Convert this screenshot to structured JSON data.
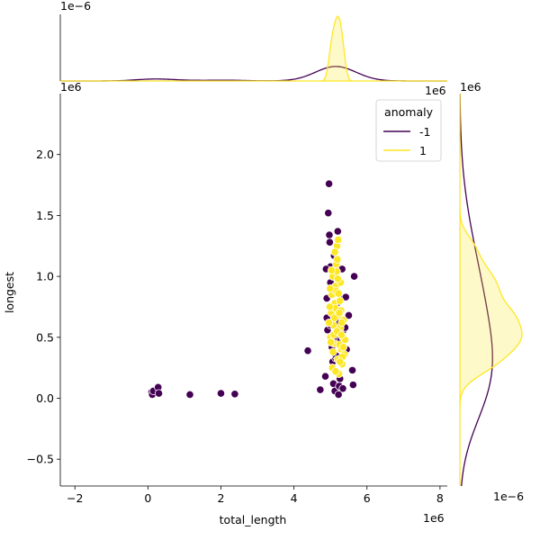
{
  "chart_data": {
    "type": "scatter",
    "title": "",
    "xlabel": "total_length",
    "ylabel": "longest",
    "x_offset_label": "1e6",
    "y_offset_label": "1e6",
    "xlim": [
      -2.4,
      8.2
    ],
    "ylim": [
      -0.72,
      2.5
    ],
    "x_ticks": [
      -2,
      0,
      2,
      4,
      6,
      8
    ],
    "y_ticks": [
      -0.5,
      0.0,
      0.5,
      1.0,
      1.5,
      2.0
    ],
    "x_tick_labels": [
      "−2",
      "0",
      "2",
      "4",
      "6",
      "8"
    ],
    "y_tick_labels": [
      "−0.5",
      "0.0",
      "0.5",
      "1.0",
      "1.5",
      "2.0"
    ],
    "grid": false,
    "legend": {
      "title": "anomaly",
      "placement": "top-right",
      "entries": [
        {
          "label": "-1",
          "color": "#440154"
        },
        {
          "label": "1",
          "color": "#fde725"
        }
      ]
    },
    "marginals": {
      "top_offset_label": "1e−6",
      "top_axis_right_label": "1e6",
      "right_offset_label": "1e−6",
      "right_axis_top_label": "1e6"
    },
    "series": [
      {
        "name": "-1",
        "color": "#440154",
        "points": [
          [
            0.1,
            0.05
          ],
          [
            0.12,
            0.03
          ],
          [
            0.15,
            0.06
          ],
          [
            0.28,
            0.09
          ],
          [
            0.3,
            0.04
          ],
          [
            1.15,
            0.03
          ],
          [
            2.0,
            0.04
          ],
          [
            2.38,
            0.035
          ],
          [
            4.38,
            0.39
          ],
          [
            4.72,
            0.07
          ],
          [
            4.86,
            0.18
          ],
          [
            4.9,
            0.66
          ],
          [
            4.92,
            0.56
          ],
          [
            4.94,
            1.52
          ],
          [
            4.96,
            1.76
          ],
          [
            4.97,
            1.34
          ],
          [
            4.98,
            1.28
          ],
          [
            5.0,
            0.95
          ],
          [
            5.0,
            1.08
          ],
          [
            5.0,
            0.6
          ],
          [
            5.02,
            0.9
          ],
          [
            5.04,
            0.42
          ],
          [
            5.06,
            0.3
          ],
          [
            5.08,
            0.12
          ],
          [
            5.1,
            1.17
          ],
          [
            5.12,
            0.06
          ],
          [
            5.14,
            0.33
          ],
          [
            5.16,
            0.5
          ],
          [
            5.18,
            0.78
          ],
          [
            5.2,
            1.37
          ],
          [
            5.22,
            0.03
          ],
          [
            5.24,
            0.1
          ],
          [
            5.26,
            0.16
          ],
          [
            5.28,
            0.48
          ],
          [
            5.3,
            0.82
          ],
          [
            5.32,
            1.06
          ],
          [
            5.34,
            0.08
          ],
          [
            5.36,
            0.56
          ],
          [
            5.4,
            0.58
          ],
          [
            5.42,
            0.83
          ],
          [
            5.44,
            0.4
          ],
          [
            5.5,
            0.68
          ],
          [
            5.6,
            0.23
          ],
          [
            5.62,
            0.11
          ],
          [
            5.65,
            1.0
          ],
          [
            4.88,
            1.06
          ],
          [
            4.9,
            0.82
          ],
          [
            5.15,
            0.35
          ],
          [
            5.25,
            0.62
          ]
        ]
      },
      {
        "name": "1",
        "color": "#fde725",
        "points": [
          [
            5.0,
            0.5
          ],
          [
            5.02,
            0.7
          ],
          [
            5.04,
            0.85
          ],
          [
            5.06,
            1.0
          ],
          [
            5.08,
            0.6
          ],
          [
            5.1,
            0.45
          ],
          [
            5.12,
            0.78
          ],
          [
            5.14,
            0.92
          ],
          [
            5.16,
            1.1
          ],
          [
            5.18,
            1.25
          ],
          [
            5.2,
            0.32
          ],
          [
            5.22,
            0.55
          ],
          [
            5.24,
            0.68
          ],
          [
            5.26,
            0.8
          ],
          [
            5.28,
            0.95
          ],
          [
            5.3,
            0.4
          ],
          [
            5.32,
            0.28
          ],
          [
            5.34,
            0.5
          ],
          [
            5.36,
            0.64
          ],
          [
            5.38,
            0.36
          ],
          [
            5.4,
            0.48
          ],
          [
            5.05,
            0.25
          ],
          [
            5.07,
            0.38
          ],
          [
            5.09,
            0.52
          ],
          [
            5.11,
            0.66
          ],
          [
            5.13,
            0.74
          ],
          [
            5.15,
            0.88
          ],
          [
            5.17,
            1.04
          ],
          [
            5.19,
            1.14
          ],
          [
            5.21,
            1.3
          ],
          [
            5.23,
            0.2
          ],
          [
            5.25,
            0.44
          ],
          [
            5.27,
            0.58
          ],
          [
            5.29,
            0.72
          ],
          [
            5.31,
            0.62
          ],
          [
            5.33,
            0.34
          ],
          [
            5.35,
            0.42
          ],
          [
            4.98,
            0.75
          ],
          [
            4.96,
            0.62
          ],
          [
            4.99,
            0.9
          ],
          [
            5.03,
            1.05
          ],
          [
            5.2,
            0.98
          ],
          [
            5.26,
            0.3
          ],
          [
            5.14,
            0.22
          ],
          [
            5.18,
            0.55
          ],
          [
            5.22,
            0.86
          ],
          [
            5.01,
            0.46
          ],
          [
            5.3,
            0.52
          ],
          [
            5.12,
            1.2
          ],
          [
            5.24,
            0.7
          ]
        ]
      }
    ]
  }
}
